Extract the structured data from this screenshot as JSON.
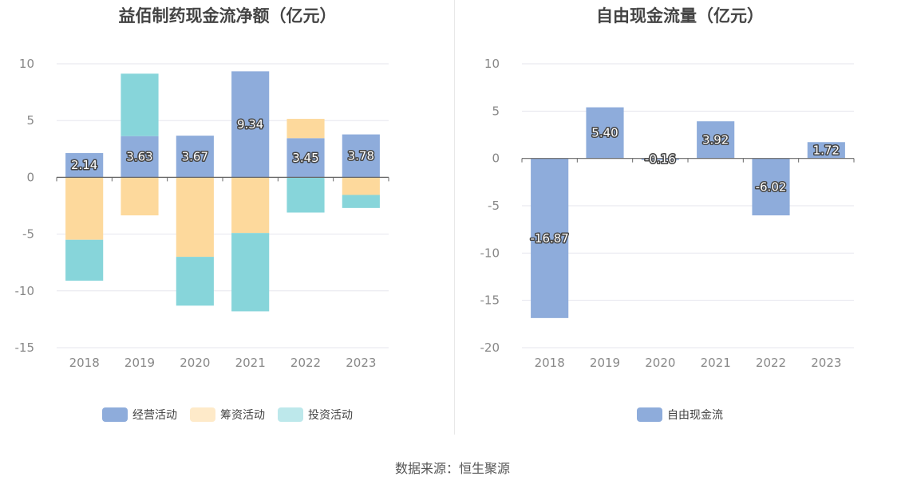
{
  "charts": {
    "left": {
      "title": "益佰制药现金流净额（亿元）",
      "chart_data": {
        "type": "bar",
        "stacked": true,
        "title": "益佰制药现金流净额（亿元）",
        "categories": [
          "2018",
          "2019",
          "2020",
          "2021",
          "2022",
          "2023"
        ],
        "ylim": [
          -15,
          10
        ],
        "yticks": [
          10,
          5,
          0,
          -5,
          -10,
          -15
        ],
        "grid": true,
        "legend_position": "bottom",
        "series": [
          {
            "name": "经营活动",
            "color": "#8eacdb",
            "values": [
              2.14,
              3.63,
              3.67,
              9.34,
              3.45,
              3.78
            ],
            "labels": [
              "2.14",
              "3.63",
              "3.67",
              "9.34",
              "3.45",
              "3.78"
            ]
          },
          {
            "name": "筹资活动",
            "color": "#fdd99c",
            "values": [
              -5.5,
              -3.35,
              -7.0,
              -4.9,
              1.7,
              -1.55
            ]
          },
          {
            "name": "投资活动",
            "color": "#87d5da",
            "values": [
              -3.6,
              5.5,
              -4.3,
              -6.9,
              -3.1,
              -1.15
            ]
          }
        ]
      }
    },
    "right": {
      "title": "自由现金流量（亿元）",
      "chart_data": {
        "type": "bar",
        "title": "自由现金流量（亿元）",
        "categories": [
          "2018",
          "2019",
          "2020",
          "2021",
          "2022",
          "2023"
        ],
        "ylim": [
          -20,
          10
        ],
        "yticks": [
          10,
          5,
          0,
          -5,
          -10,
          -15,
          -20
        ],
        "grid": true,
        "legend_position": "bottom",
        "series": [
          {
            "name": "自由现金流",
            "color": "#8eacdb",
            "values": [
              -16.87,
              5.4,
              -0.16,
              3.92,
              -6.02,
              1.72
            ],
            "labels": [
              "-16.87",
              "5.40",
              "-0.16",
              "3.92",
              "-6.02",
              "1.72"
            ]
          }
        ]
      }
    }
  },
  "footer": {
    "source": "数据来源：恒生聚源"
  }
}
